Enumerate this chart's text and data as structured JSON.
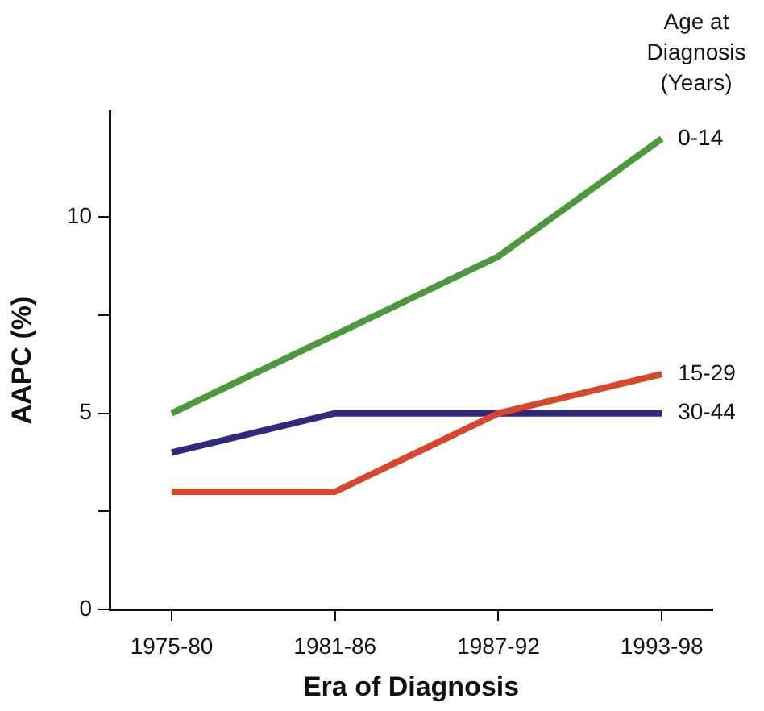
{
  "chart_data": {
    "type": "line",
    "xlabel": "Era of Diagnosis",
    "ylabel": "AAPC (%)",
    "legend_title": "Age at Diagnosis (Years)",
    "categories": [
      "1975-80",
      "1981-86",
      "1987-92",
      "1993-98"
    ],
    "series": [
      {
        "name": "0-14",
        "color": "#4a9a3c",
        "values": [
          5,
          7,
          9,
          12
        ]
      },
      {
        "name": "15-29",
        "color": "#d9462a",
        "values": [
          3,
          3,
          5,
          6
        ]
      },
      {
        "name": "30-44",
        "color": "#2e2a7f",
        "values": [
          4,
          5,
          5,
          5
        ]
      }
    ],
    "ylim": [
      0,
      12.7
    ],
    "yticks": [
      0,
      {
        "value": 2.5,
        "label": null
      },
      5,
      {
        "value": 7.5,
        "label": null
      },
      10
    ],
    "grid": false,
    "marker": "none",
    "line_style": "solid"
  }
}
